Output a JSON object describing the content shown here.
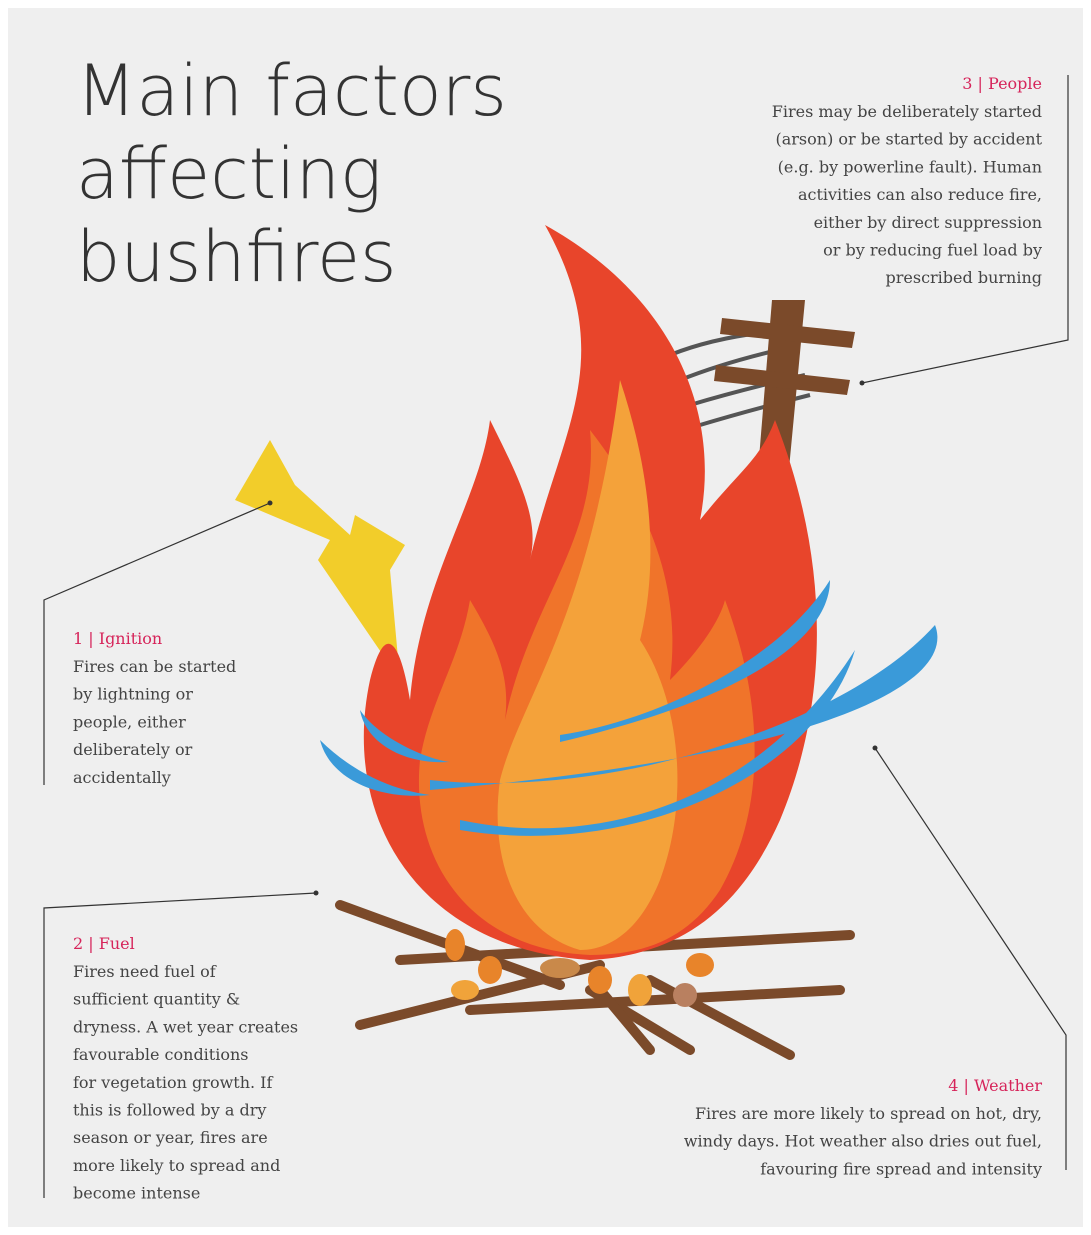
{
  "title": {
    "lines": [
      "Main factors",
      "affecting",
      "bushfires"
    ]
  },
  "factors": [
    {
      "heading": "1 | Ignition",
      "lines": [
        "Fires can be started",
        "by lightning or",
        "people, either",
        "deliberately or",
        "accidentally"
      ]
    },
    {
      "heading": "2 | Fuel",
      "lines": [
        "Fires need fuel of",
        "sufficient quantity &",
        "dryness. A wet year creates",
        "favourable conditions",
        "for vegetation growth. If",
        "this is followed by a dry",
        "season or year, fires are",
        "more likely to spread and",
        "become intense"
      ]
    },
    {
      "heading": "3 | People",
      "lines": [
        "Fires may be deliberately started",
        "(arson) or be started by accident",
        "(e.g. by powerline fault). Human",
        "activities can also reduce fire,",
        "either by direct suppression",
        "or by reducing fuel load by",
        "prescribed burning"
      ]
    },
    {
      "heading": "4 | Weather",
      "lines": [
        "Fires are more likely to spread on hot, dry,",
        "windy days. Hot weather also dries out fuel,",
        "favouring fire spread and intensity"
      ]
    }
  ]
}
